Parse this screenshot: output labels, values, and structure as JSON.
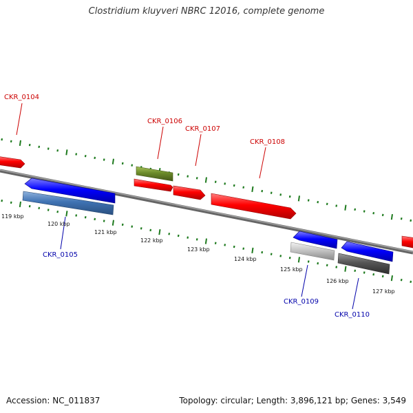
{
  "title": "Clostridium kluyveri NBRC 12016, complete genome",
  "footer": {
    "accession": "Accession: NC_011837",
    "summary": "Topology: circular; Length: 3,896,121 bp; Genes: 3,549"
  },
  "colors": {
    "backbone": "#7a7a7a",
    "forward_gene": "#ff0000",
    "reverse_gene": "#0000ff",
    "tick_green": "#1e7a1e",
    "forward_label": "#cc0000",
    "reverse_label": "#0000aa"
  },
  "scale_ticks": [
    "119 kbp",
    "120 kbp",
    "121 kbp",
    "122 kbp",
    "123 kbp",
    "124 kbp",
    "125 kbp",
    "126 kbp",
    "127 kbp"
  ],
  "gene_labels": [
    {
      "text": "CKR_0104",
      "strand": "forward"
    },
    {
      "text": "CKR_0105",
      "strand": "reverse"
    },
    {
      "text": "CKR_0106",
      "strand": "forward"
    },
    {
      "text": "CKR_0107",
      "strand": "forward"
    },
    {
      "text": "CKR_0108",
      "strand": "forward"
    },
    {
      "text": "CKR_0109",
      "strand": "reverse"
    },
    {
      "text": "CKR_0110",
      "strand": "reverse"
    }
  ],
  "features": [
    {
      "name": "gene-arrow-ckr-0104",
      "strand": "forward",
      "kind": "gene",
      "color": "#ff0000"
    },
    {
      "name": "gene-arrow-ckr-0105",
      "strand": "reverse",
      "kind": "gene",
      "color": "#0000ff"
    },
    {
      "name": "cds-bar-ckr-0105",
      "strand": "reverse",
      "kind": "cds",
      "color": "#3f72b3"
    },
    {
      "name": "cds-bar-ckr-0106",
      "strand": "forward",
      "kind": "cds",
      "color": "#6b8a2a"
    },
    {
      "name": "gene-arrow-ckr-0106",
      "strand": "forward",
      "kind": "gene",
      "color": "#ff0000"
    },
    {
      "name": "gene-arrow-ckr-0107",
      "strand": "forward",
      "kind": "gene",
      "color": "#ff0000"
    },
    {
      "name": "gene-arrow-ckr-0108",
      "strand": "forward",
      "kind": "gene",
      "color": "#ff0000"
    },
    {
      "name": "gene-arrow-ckr-0109",
      "strand": "reverse",
      "kind": "gene",
      "color": "#0000ff"
    },
    {
      "name": "cds-bar-ckr-0109",
      "strand": "reverse",
      "kind": "cds",
      "color": "#bdbdbd"
    },
    {
      "name": "gene-arrow-ckr-0110",
      "strand": "reverse",
      "kind": "gene",
      "color": "#0000ff"
    },
    {
      "name": "cds-bar-ckr-0110",
      "strand": "reverse",
      "kind": "cds",
      "color": "#555555"
    },
    {
      "name": "gene-arrow-edge-right",
      "strand": "forward",
      "kind": "gene",
      "color": "#ff0000"
    }
  ]
}
